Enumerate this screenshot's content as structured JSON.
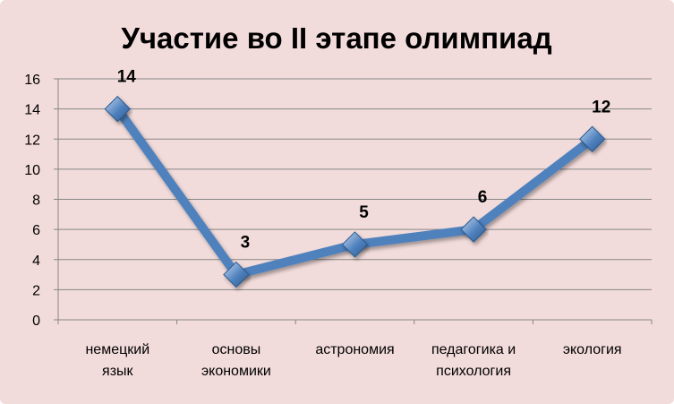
{
  "colors": {
    "background": "#f2dcdb",
    "line": "#4f81bd",
    "marker": "#4f81bd",
    "marker_highlight": "#c6d9f1",
    "gridline": "#868686",
    "axis": "#868686"
  },
  "chart_data": {
    "type": "line",
    "title": "Участие во II этапе олимпиад",
    "xlabel": "",
    "ylabel": "",
    "categories": [
      [
        "немецкий",
        "язык"
      ],
      [
        "основы",
        "экономики"
      ],
      [
        "астрономия"
      ],
      [
        "педагогика и",
        "психология"
      ],
      [
        "экология"
      ]
    ],
    "series": [
      {
        "values": [
          14,
          3,
          5,
          6,
          12
        ]
      }
    ],
    "data_labels": [
      "14",
      "3",
      "5",
      "6",
      "12"
    ],
    "ylim": [
      0,
      16
    ],
    "yticks": [
      0,
      2,
      4,
      6,
      8,
      10,
      12,
      14,
      16
    ],
    "grid": true,
    "legend": "none",
    "marker": "diamond"
  }
}
